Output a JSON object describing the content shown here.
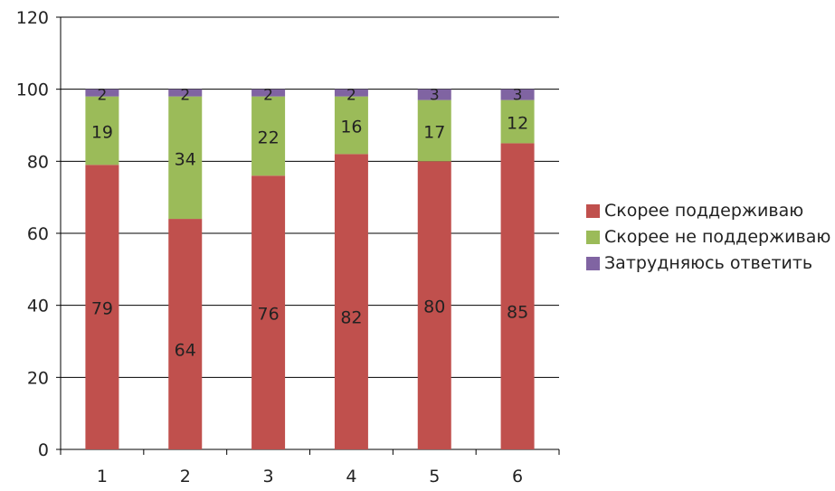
{
  "chart_data": {
    "type": "bar",
    "stacked": true,
    "title": "",
    "xlabel": "",
    "ylabel": "",
    "categories": [
      "1",
      "2",
      "3",
      "4",
      "5",
      "6"
    ],
    "ylim": [
      0,
      120
    ],
    "yticks": [
      "0",
      "20",
      "40",
      "60",
      "80",
      "100",
      "120"
    ],
    "grid": true,
    "legend_position": "right",
    "series": [
      {
        "name": "Скорее поддерживаю",
        "color": "#c0504d",
        "values": [
          79,
          64,
          76,
          82,
          80,
          85
        ]
      },
      {
        "name": "Скорее не поддерживаю",
        "color": "#9bbb59",
        "values": [
          19,
          34,
          22,
          16,
          17,
          12
        ]
      },
      {
        "name": "Затрудняюсь ответить",
        "color": "#8064a2",
        "values": [
          2,
          2,
          2,
          2,
          3,
          3
        ]
      }
    ]
  }
}
